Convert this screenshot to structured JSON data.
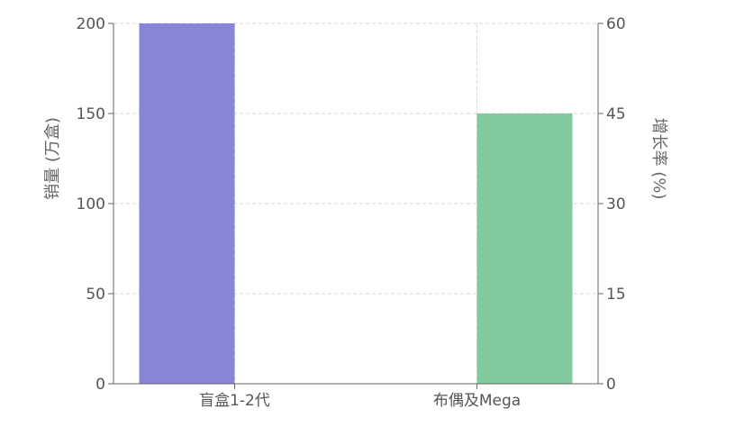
{
  "chart_data": {
    "type": "bar",
    "categories": [
      "盲盒1-2代",
      "布偶及Mega"
    ],
    "series": [
      {
        "axis": "left",
        "values": [
          200,
          null
        ],
        "color": "#8884d8"
      },
      {
        "axis": "right",
        "values": [
          null,
          45
        ],
        "color": "#82ca9d"
      }
    ],
    "y_left": {
      "label": "销量 (万盒)",
      "range": [
        0,
        200
      ],
      "ticks": [
        0,
        50,
        100,
        150,
        200
      ]
    },
    "y_right": {
      "label": "增长率 (%)",
      "range": [
        0,
        60
      ],
      "ticks": [
        0,
        15,
        30,
        45,
        60
      ]
    },
    "grid": true,
    "legend": "none"
  }
}
